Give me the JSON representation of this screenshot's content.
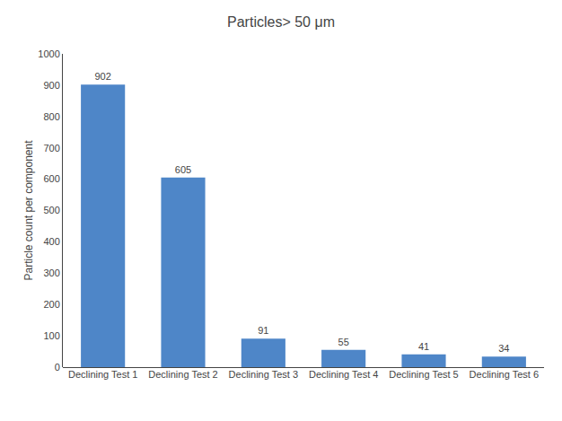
{
  "chart_data": {
    "type": "bar",
    "title": "Particles> 50 μm",
    "ylabel": "Particle count per component",
    "categories": [
      "Declining Test 1",
      "Declining Test 2",
      "Declining Test 3",
      "Declining Test 4",
      "Declining Test 5",
      "Declining Test 6"
    ],
    "values": [
      902,
      605,
      91,
      55,
      41,
      34
    ],
    "color": "#4e86c8",
    "ylim": [
      0,
      1000
    ],
    "yticks": [
      0,
      100,
      200,
      300,
      400,
      500,
      600,
      700,
      800,
      900,
      1000
    ],
    "grid": false,
    "data_labels": true
  }
}
